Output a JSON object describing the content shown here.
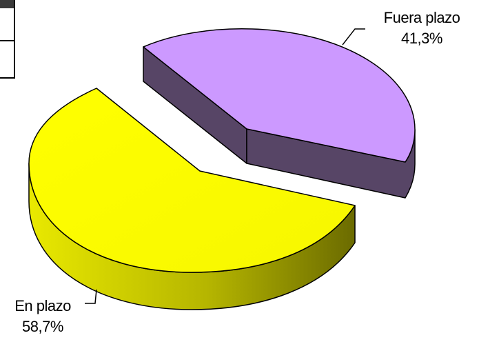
{
  "chart_data": {
    "type": "pie",
    "title": "",
    "three_d": true,
    "exploded": true,
    "categories": [
      "En plazo",
      "Fuera plazo"
    ],
    "values": [
      58.7,
      41.3
    ],
    "value_labels": [
      "58,7%",
      "41,3%"
    ],
    "colors": {
      "En plazo": "#ffff00",
      "Fuera plazo": "#cc99ff"
    },
    "legend": "none"
  }
}
